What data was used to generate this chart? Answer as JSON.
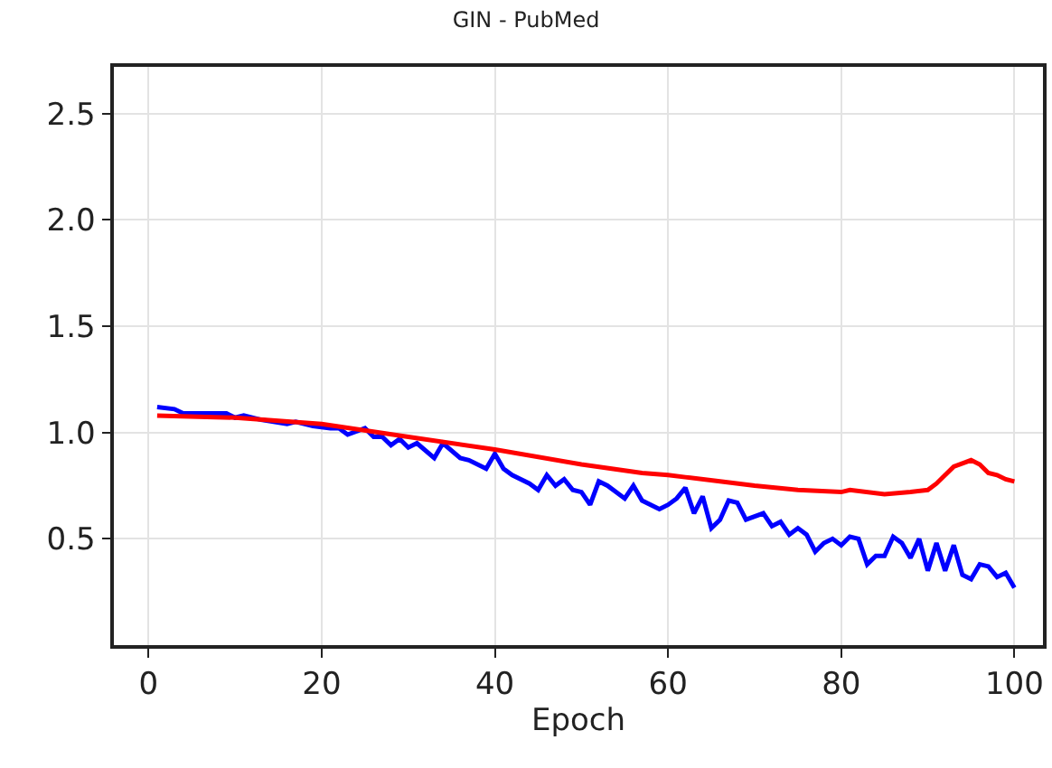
{
  "chart_data": {
    "type": "line",
    "title": "GIN - PubMed",
    "xlabel": "Epoch",
    "xlim": [
      -4,
      103.3
    ],
    "xticks": [
      0,
      20,
      40,
      60,
      80,
      100
    ],
    "ylim": [
      0.0,
      2.72
    ],
    "yticks": [
      0.5,
      {
        "value": 1,
        "label": "1.0"
      },
      1.5,
      {
        "value": 2,
        "label": "2.0"
      },
      2.5
    ],
    "grid": true,
    "marker": "none",
    "line_style": "solid",
    "series": [
      {
        "color": "#0000ff",
        "x": [
          1,
          3,
          4,
          9,
          10,
          11,
          13,
          16,
          17,
          19,
          21,
          22,
          23,
          25,
          26,
          27,
          28,
          29,
          30,
          31,
          33,
          34,
          36,
          37,
          39,
          40,
          41,
          42,
          44,
          45,
          46,
          47,
          48,
          49,
          50,
          51,
          52,
          53,
          55,
          56,
          57,
          59,
          60,
          61,
          62,
          63,
          64,
          65,
          66,
          67,
          68,
          69,
          71,
          72,
          73,
          74,
          75,
          76,
          77,
          78,
          79,
          80,
          81,
          82,
          83,
          84,
          85,
          86,
          87,
          88,
          89,
          90,
          91,
          92,
          93,
          94,
          95,
          96,
          97,
          98,
          99,
          100
        ],
        "values": [
          1.12,
          1.11,
          1.09,
          1.09,
          1.07,
          1.08,
          1.06,
          1.04,
          1.05,
          1.03,
          1.02,
          1.02,
          0.99,
          1.02,
          0.98,
          0.98,
          0.94,
          0.97,
          0.93,
          0.95,
          0.88,
          0.95,
          0.88,
          0.87,
          0.83,
          0.9,
          0.83,
          0.8,
          0.76,
          0.73,
          0.8,
          0.75,
          0.78,
          0.73,
          0.72,
          0.66,
          0.77,
          0.75,
          0.69,
          0.75,
          0.68,
          0.64,
          0.66,
          0.69,
          0.74,
          0.62,
          0.7,
          0.55,
          0.59,
          0.68,
          0.67,
          0.59,
          0.62,
          0.56,
          0.58,
          0.52,
          0.55,
          0.52,
          0.44,
          0.48,
          0.5,
          0.47,
          0.51,
          0.5,
          0.38,
          0.42,
          0.42,
          0.51,
          0.48,
          0.41,
          0.5,
          0.35,
          0.48,
          0.35,
          0.47,
          0.33,
          0.31,
          0.38,
          0.37,
          0.32,
          0.34,
          0.27
        ]
      },
      {
        "color": "#ff0000",
        "x": [
          1,
          10,
          20,
          30,
          40,
          50,
          57,
          60,
          62,
          66,
          70,
          75,
          80,
          81,
          85,
          88,
          90,
          91,
          92,
          93,
          95,
          96,
          97,
          98,
          99,
          100
        ],
        "values": [
          1.08,
          1.07,
          1.04,
          0.98,
          0.92,
          0.85,
          0.81,
          0.8,
          0.79,
          0.77,
          0.75,
          0.73,
          0.72,
          0.73,
          0.71,
          0.72,
          0.73,
          0.76,
          0.8,
          0.84,
          0.87,
          0.85,
          0.81,
          0.8,
          0.78,
          0.77
        ]
      }
    ]
  }
}
